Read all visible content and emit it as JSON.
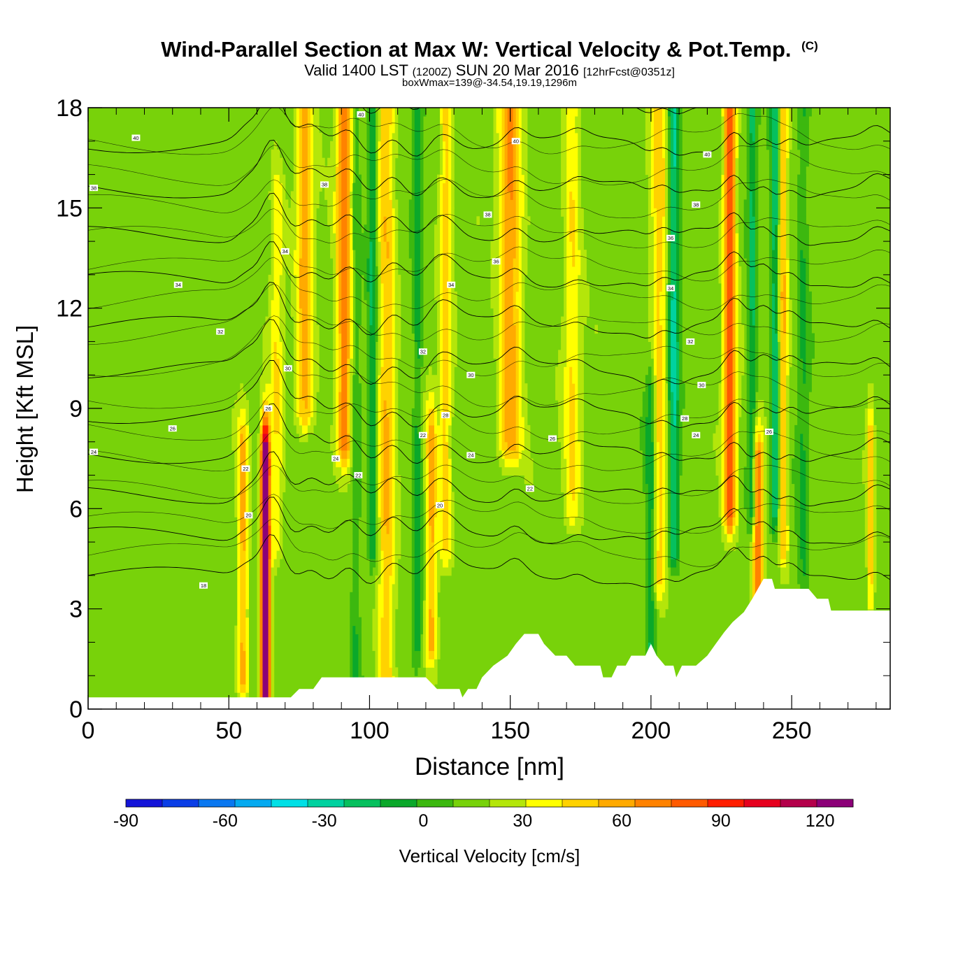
{
  "chart_data": {
    "type": "heatmap",
    "title": "Wind-Parallel Section at Max W: Vertical Velocity & Pot.Temp.",
    "title_mark": "(C)",
    "subtitle_parts": [
      "Valid 1400 LST ",
      "(1200Z)",
      " SUN 20 Mar 2016 ",
      "[12hrFcst@0351z]"
    ],
    "subtitle2": "boxWmax=139@-34.54,19.19,1296m",
    "xlabel": "Distance [nm]",
    "ylabel": "Height [Kft MSL]",
    "xlim": [
      0,
      285
    ],
    "ylim": [
      0,
      18
    ],
    "xticks": [
      {
        "value": 0,
        "label": "0"
      },
      {
        "value": 50,
        "label": "50"
      },
      {
        "value": 100,
        "label": "100"
      },
      {
        "value": 150,
        "label": "150"
      },
      {
        "value": 200,
        "label": "200"
      },
      {
        "value": 250,
        "label": "250"
      }
    ],
    "yticks": [
      {
        "value": 0,
        "label": "0"
      },
      {
        "value": 3,
        "label": "3"
      },
      {
        "value": 6,
        "label": "6"
      },
      {
        "value": 9,
        "label": "9"
      },
      {
        "value": 12,
        "label": "12"
      },
      {
        "value": 15,
        "label": "15"
      },
      {
        "value": 18,
        "label": "18"
      }
    ],
    "base_value": 5,
    "updraft_bands": [
      {
        "x": 63,
        "width": 1.6,
        "w": 125,
        "ybot": 0.6,
        "ytop": 7.3
      },
      {
        "x": 55,
        "width": 1.8,
        "w": 40,
        "ybot": 1.0,
        "ytop": 7.5
      },
      {
        "x": 67,
        "width": 2.2,
        "w": 24,
        "ybot": 5.0,
        "ytop": 15.0
      },
      {
        "x": 77,
        "width": 3.0,
        "w": 40,
        "ybot": 9.0,
        "ytop": 18
      },
      {
        "x": 91,
        "width": 2.8,
        "w": 52,
        "ybot": 8.0,
        "ytop": 18
      },
      {
        "x": 106,
        "width": 3.0,
        "w": 35,
        "ybot": 1.0,
        "ytop": 18
      },
      {
        "x": 122,
        "width": 2.0,
        "w": 40,
        "ybot": 2.0,
        "ytop": 8.0
      },
      {
        "x": 127,
        "width": 2.2,
        "w": 30,
        "ybot": 5.0,
        "ytop": 18
      },
      {
        "x": 150,
        "width": 4.0,
        "w": 44,
        "ybot": 8.0,
        "ytop": 18
      },
      {
        "x": 172,
        "width": 3.0,
        "w": 25,
        "ybot": 6.0,
        "ytop": 18
      },
      {
        "x": 203,
        "width": 3.0,
        "w": 30,
        "ybot": 4.0,
        "ytop": 18
      },
      {
        "x": 228,
        "width": 2.2,
        "w": 65,
        "ybot": 6.0,
        "ytop": 18
      },
      {
        "x": 238,
        "width": 2.0,
        "w": 60,
        "ybot": 2.5,
        "ytop": 7.0
      },
      {
        "x": 247,
        "width": 1.6,
        "w": 35,
        "ybot": 5.0,
        "ytop": 18
      },
      {
        "x": 278,
        "width": 1.2,
        "w": 32,
        "ybot": 3.5,
        "ytop": 8.0
      }
    ],
    "downdraft_bands": [
      {
        "x": 95,
        "width": 1.6,
        "w": -16,
        "ybot": 1.0,
        "ytop": 18
      },
      {
        "x": 101,
        "width": 1.6,
        "w": -26,
        "ybot": 5.0,
        "ytop": 18
      },
      {
        "x": 117,
        "width": 1.6,
        "w": -20,
        "ybot": 2.0,
        "ytop": 18
      },
      {
        "x": 200,
        "width": 1.8,
        "w": -30,
        "ybot": 1.5,
        "ytop": 9.0
      },
      {
        "x": 208,
        "width": 2.0,
        "w": -38,
        "ybot": 5.0,
        "ytop": 18
      },
      {
        "x": 236,
        "width": 1.6,
        "w": -28,
        "ybot": 6.0,
        "ytop": 18
      },
      {
        "x": 244,
        "width": 1.4,
        "w": -34,
        "ybot": 6.0,
        "ytop": 18
      },
      {
        "x": 254,
        "width": 2.0,
        "w": -16,
        "ybot": 4.0,
        "ytop": 18
      }
    ],
    "terrain": [
      [
        0,
        0.35
      ],
      [
        14,
        0.35
      ],
      [
        72,
        0.35
      ],
      [
        75,
        0.6
      ],
      [
        80,
        0.6
      ],
      [
        83,
        0.95
      ],
      [
        120,
        0.95
      ],
      [
        124,
        0.6
      ],
      [
        132,
        0.6
      ],
      [
        133,
        0.35
      ],
      [
        135,
        0.6
      ],
      [
        138,
        0.6
      ],
      [
        140,
        0.95
      ],
      [
        144,
        1.3
      ],
      [
        149,
        1.6
      ],
      [
        152,
        1.95
      ],
      [
        155,
        2.25
      ],
      [
        160,
        2.25
      ],
      [
        162,
        1.95
      ],
      [
        166,
        1.6
      ],
      [
        170,
        1.6
      ],
      [
        173,
        1.3
      ],
      [
        182,
        1.3
      ],
      [
        183,
        0.95
      ],
      [
        186,
        0.95
      ],
      [
        188,
        1.3
      ],
      [
        191,
        1.3
      ],
      [
        193,
        1.6
      ],
      [
        198,
        1.6
      ],
      [
        200,
        1.95
      ],
      [
        202,
        1.6
      ],
      [
        205,
        1.3
      ],
      [
        208,
        1.3
      ],
      [
        209,
        0.95
      ],
      [
        211,
        1.3
      ],
      [
        216,
        1.3
      ],
      [
        220,
        1.6
      ],
      [
        223,
        1.95
      ],
      [
        226,
        2.3
      ],
      [
        229,
        2.6
      ],
      [
        233,
        2.9
      ],
      [
        236,
        3.3
      ],
      [
        238,
        3.6
      ],
      [
        240,
        3.9
      ],
      [
        243,
        3.9
      ],
      [
        244,
        3.6
      ],
      [
        256,
        3.6
      ],
      [
        259,
        3.3
      ],
      [
        263,
        3.3
      ],
      [
        264,
        2.95
      ],
      [
        285,
        2.95
      ]
    ],
    "theta_levels": [
      18,
      20,
      22,
      24,
      26,
      28,
      30,
      32,
      34,
      36,
      38,
      40
    ],
    "theta_labels": [
      {
        "text": "40",
        "x": 17,
        "y": 17.1
      },
      {
        "text": "38",
        "x": 2,
        "y": 15.6
      },
      {
        "text": "34",
        "x": 32,
        "y": 12.7
      },
      {
        "text": "32",
        "x": 47,
        "y": 11.3
      },
      {
        "text": "26",
        "x": 30,
        "y": 8.4
      },
      {
        "text": "24",
        "x": 2,
        "y": 7.7
      },
      {
        "text": "18",
        "x": 41,
        "y": 3.7
      },
      {
        "text": "20",
        "x": 57,
        "y": 5.8
      },
      {
        "text": "22",
        "x": 56,
        "y": 7.2
      },
      {
        "text": "26",
        "x": 64,
        "y": 9.0
      },
      {
        "text": "30",
        "x": 71,
        "y": 10.2
      },
      {
        "text": "34",
        "x": 70,
        "y": 13.7
      },
      {
        "text": "38",
        "x": 84,
        "y": 15.7
      },
      {
        "text": "40",
        "x": 97,
        "y": 17.8
      },
      {
        "text": "24",
        "x": 88,
        "y": 7.5
      },
      {
        "text": "22",
        "x": 96,
        "y": 7.0
      },
      {
        "text": "20",
        "x": 125,
        "y": 6.1
      },
      {
        "text": "22",
        "x": 119,
        "y": 8.2
      },
      {
        "text": "28",
        "x": 127,
        "y": 8.8
      },
      {
        "text": "32",
        "x": 119,
        "y": 10.7
      },
      {
        "text": "34",
        "x": 129,
        "y": 12.7
      },
      {
        "text": "30",
        "x": 136,
        "y": 10.0
      },
      {
        "text": "24",
        "x": 136,
        "y": 7.6
      },
      {
        "text": "38",
        "x": 142,
        "y": 14.8
      },
      {
        "text": "36",
        "x": 145,
        "y": 13.4
      },
      {
        "text": "40",
        "x": 152,
        "y": 17.0
      },
      {
        "text": "26",
        "x": 165,
        "y": 8.1
      },
      {
        "text": "22",
        "x": 157,
        "y": 6.6
      },
      {
        "text": "34",
        "x": 207,
        "y": 12.6
      },
      {
        "text": "36",
        "x": 207,
        "y": 14.1
      },
      {
        "text": "38",
        "x": 216,
        "y": 15.1
      },
      {
        "text": "40",
        "x": 220,
        "y": 16.6
      },
      {
        "text": "32",
        "x": 214,
        "y": 11.0
      },
      {
        "text": "30",
        "x": 218,
        "y": 9.7
      },
      {
        "text": "28",
        "x": 212,
        "y": 8.7
      },
      {
        "text": "24",
        "x": 216,
        "y": 8.2
      },
      {
        "text": "26",
        "x": 242,
        "y": 8.3
      }
    ],
    "colorbar": {
      "colors": [
        "#1414d8",
        "#0a3ee6",
        "#0a78f0",
        "#05aaf0",
        "#00e0e6",
        "#00d2a0",
        "#06c05e",
        "#0aa82a",
        "#3cb80f",
        "#78d20a",
        "#b4e60a",
        "#ffff00",
        "#ffd200",
        "#ffaa00",
        "#ff8200",
        "#ff5a00",
        "#ff1e00",
        "#e6001e",
        "#b4004b",
        "#8c0078"
      ],
      "vmin": -90,
      "vmax": 130,
      "step": 10,
      "tick_values": [
        -90,
        -60,
        -30,
        0,
        30,
        60,
        90,
        120
      ],
      "tick_labels": [
        "-90",
        "-60",
        "-30",
        "0",
        "30",
        "60",
        "90",
        "120"
      ],
      "label": "Vertical Velocity [cm/s]"
    }
  }
}
